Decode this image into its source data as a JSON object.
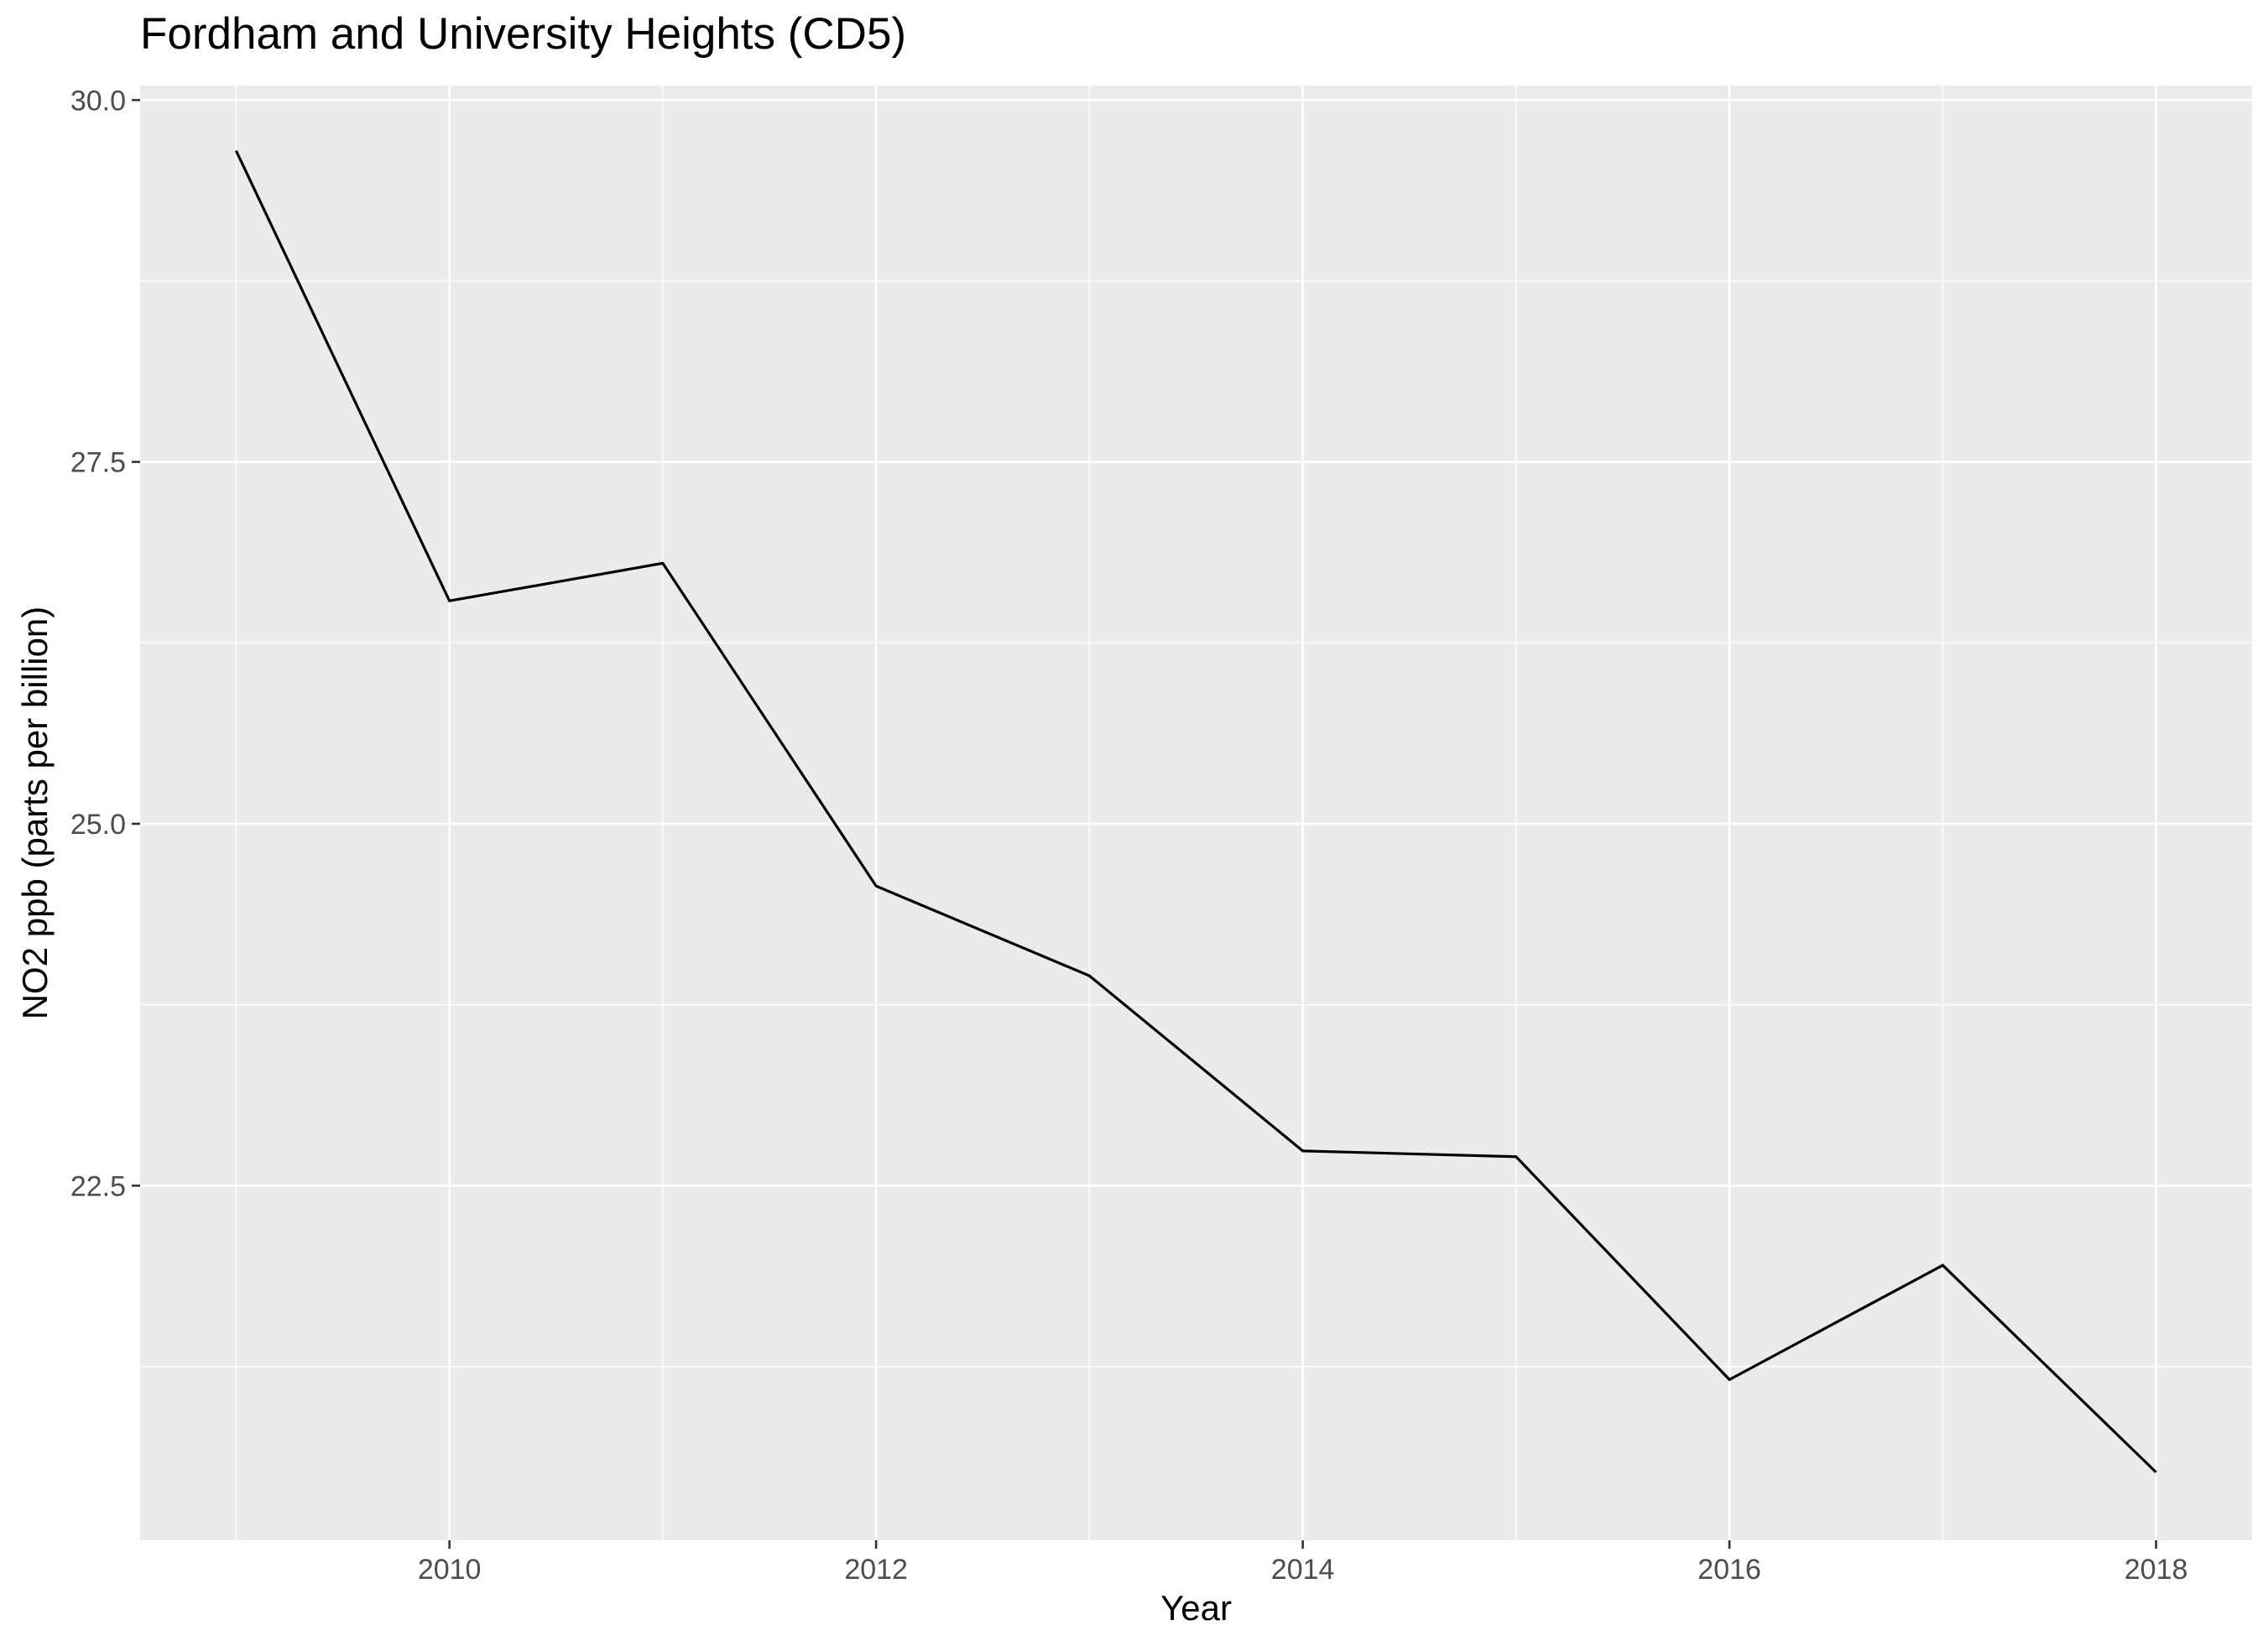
{
  "chart_data": {
    "type": "line",
    "title": "Fordham and University Heights (CD5)",
    "xlabel": "Year",
    "ylabel": "NO2 ppb (parts per billion)",
    "x": [
      2009,
      2010,
      2011,
      2012,
      2013,
      2014,
      2015,
      2016,
      2017,
      2018
    ],
    "series": [
      {
        "name": "",
        "values": [
          29.65,
          26.54,
          26.8,
          24.57,
          23.95,
          22.74,
          22.7,
          21.16,
          21.95,
          20.52
        ]
      }
    ],
    "xlim": [
      2008.55,
      2018.45
    ],
    "ylim": [
      20.05,
      30.1
    ],
    "x_ticks": [
      2010,
      2012,
      2014,
      2016,
      2018
    ],
    "x_tick_labels": [
      "2010",
      "2012",
      "2014",
      "2016",
      "2018"
    ],
    "y_ticks": [
      22.5,
      25.0,
      27.5,
      30.0
    ],
    "y_tick_labels": [
      "22.5",
      "25.0",
      "27.5",
      "30.0"
    ],
    "grid": true,
    "legend": "none",
    "colors": {
      "panel_background": "#ebebeb",
      "grid_major": "#ffffff",
      "line": "#000000",
      "tick_text": "#4d4d4d",
      "tick_mark": "#333333"
    }
  }
}
